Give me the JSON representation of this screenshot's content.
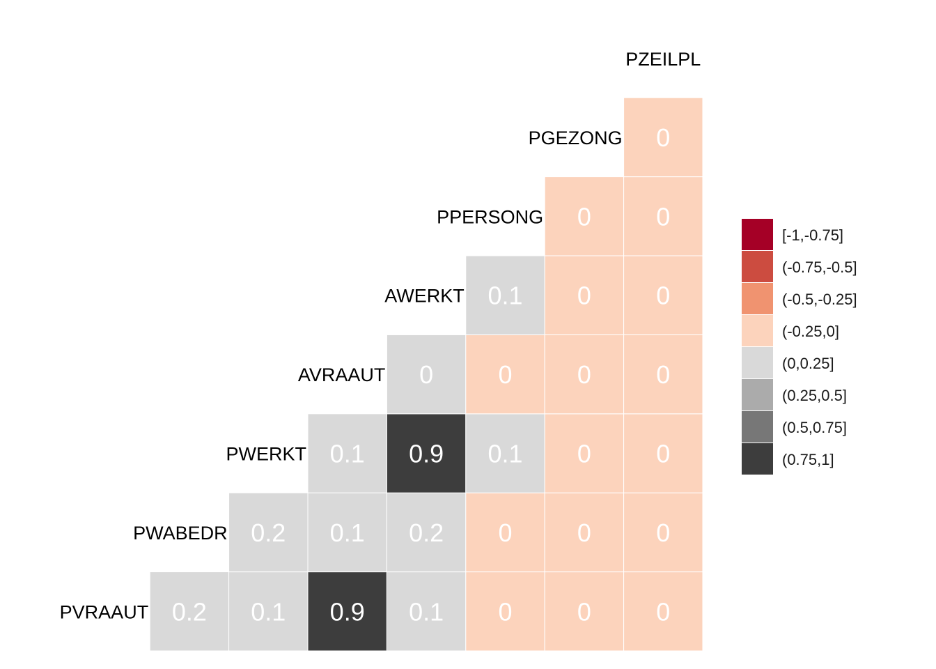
{
  "chart_data": {
    "type": "heatmap",
    "title": "",
    "variables": [
      "PVRAAUT",
      "PWABEDR",
      "PWERKT",
      "AVRAAUT",
      "AWERKT",
      "PPERSONG",
      "PGEZONG",
      "PZEILPL"
    ],
    "cells": [
      {
        "row": "PVRAAUT",
        "col": "PWABEDR",
        "value": 0.2,
        "label": "0.2",
        "bin": 4
      },
      {
        "row": "PVRAAUT",
        "col": "PWERKT",
        "value": 0.1,
        "label": "0.1",
        "bin": 4
      },
      {
        "row": "PVRAAUT",
        "col": "AVRAAUT",
        "value": 0.9,
        "label": "0.9",
        "bin": 7
      },
      {
        "row": "PVRAAUT",
        "col": "AWERKT",
        "value": 0.1,
        "label": "0.1",
        "bin": 4
      },
      {
        "row": "PVRAAUT",
        "col": "PPERSONG",
        "value": 0,
        "label": "0",
        "bin": 3
      },
      {
        "row": "PVRAAUT",
        "col": "PGEZONG",
        "value": 0,
        "label": "0",
        "bin": 3
      },
      {
        "row": "PVRAAUT",
        "col": "PZEILPL",
        "value": 0,
        "label": "0",
        "bin": 3
      },
      {
        "row": "PWABEDR",
        "col": "PWERKT",
        "value": 0.2,
        "label": "0.2",
        "bin": 4
      },
      {
        "row": "PWABEDR",
        "col": "AVRAAUT",
        "value": 0.1,
        "label": "0.1",
        "bin": 4
      },
      {
        "row": "PWABEDR",
        "col": "AWERKT",
        "value": 0.2,
        "label": "0.2",
        "bin": 4
      },
      {
        "row": "PWABEDR",
        "col": "PPERSONG",
        "value": 0,
        "label": "0",
        "bin": 3
      },
      {
        "row": "PWABEDR",
        "col": "PGEZONG",
        "value": 0,
        "label": "0",
        "bin": 3
      },
      {
        "row": "PWABEDR",
        "col": "PZEILPL",
        "value": 0,
        "label": "0",
        "bin": 3
      },
      {
        "row": "PWERKT",
        "col": "AVRAAUT",
        "value": 0.1,
        "label": "0.1",
        "bin": 4
      },
      {
        "row": "PWERKT",
        "col": "AWERKT",
        "value": 0.9,
        "label": "0.9",
        "bin": 7
      },
      {
        "row": "PWERKT",
        "col": "PPERSONG",
        "value": 0.1,
        "label": "0.1",
        "bin": 4
      },
      {
        "row": "PWERKT",
        "col": "PGEZONG",
        "value": 0,
        "label": "0",
        "bin": 3
      },
      {
        "row": "PWERKT",
        "col": "PZEILPL",
        "value": 0,
        "label": "0",
        "bin": 3
      },
      {
        "row": "AVRAAUT",
        "col": "AWERKT",
        "value": 0,
        "label": "0",
        "bin": 4
      },
      {
        "row": "AVRAAUT",
        "col": "PPERSONG",
        "value": 0,
        "label": "0",
        "bin": 3
      },
      {
        "row": "AVRAAUT",
        "col": "PGEZONG",
        "value": 0,
        "label": "0",
        "bin": 3
      },
      {
        "row": "AVRAAUT",
        "col": "PZEILPL",
        "value": 0,
        "label": "0",
        "bin": 3
      },
      {
        "row": "AWERKT",
        "col": "PPERSONG",
        "value": 0.1,
        "label": "0.1",
        "bin": 4
      },
      {
        "row": "AWERKT",
        "col": "PGEZONG",
        "value": 0,
        "label": "0",
        "bin": 3
      },
      {
        "row": "AWERKT",
        "col": "PZEILPL",
        "value": 0,
        "label": "0",
        "bin": 3
      },
      {
        "row": "PPERSONG",
        "col": "PGEZONG",
        "value": 0,
        "label": "0",
        "bin": 3
      },
      {
        "row": "PPERSONG",
        "col": "PZEILPL",
        "value": 0,
        "label": "0",
        "bin": 3
      },
      {
        "row": "PGEZONG",
        "col": "PZEILPL",
        "value": 0,
        "label": "0",
        "bin": 3
      }
    ],
    "legend": {
      "placement": "right",
      "entries": [
        {
          "label": "[-1,-0.75]",
          "color": "#a50026"
        },
        {
          "label": "(-0.75,-0.5]",
          "color": "#cc4c40"
        },
        {
          "label": "(-0.5,-0.25]",
          "color": "#f09370"
        },
        {
          "label": "(-0.25,0]",
          "color": "#fcd3bc"
        },
        {
          "label": "(0,0.25]",
          "color": "#d9d9d9"
        },
        {
          "label": "(0.25,0.5]",
          "color": "#ababab"
        },
        {
          "label": "(0.5,0.75]",
          "color": "#777777"
        },
        {
          "label": "(0.75,1]",
          "color": "#3d3d3d"
        }
      ]
    },
    "grid": false,
    "text_colors": {
      "light_cell": "#ffffff",
      "dark_cell": "#ffffff"
    }
  }
}
